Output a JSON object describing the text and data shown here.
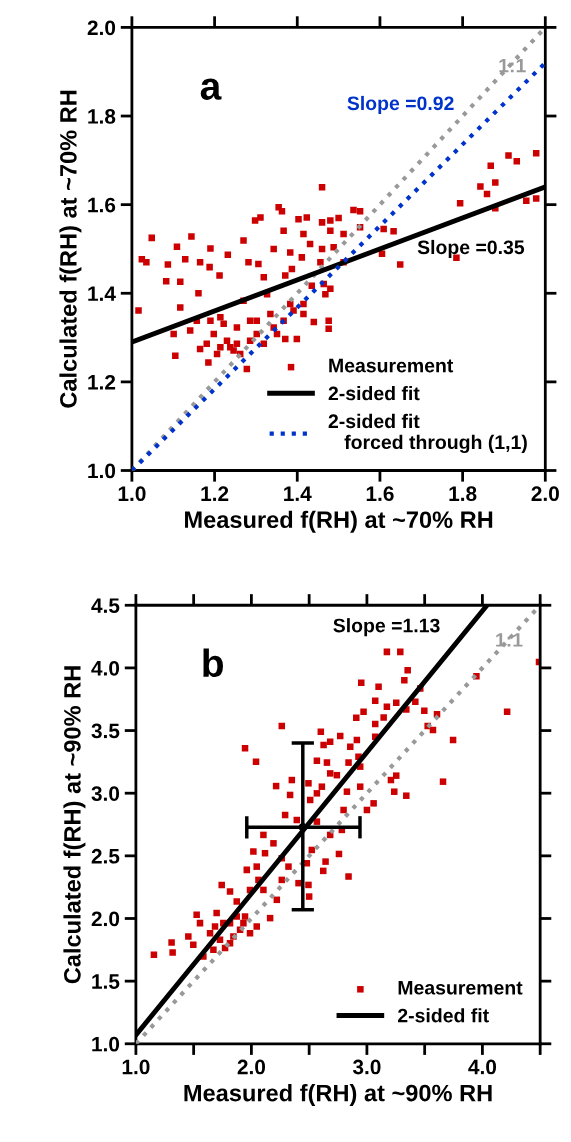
{
  "chart_data": [
    {
      "type": "scatter",
      "xlabel": "Measured f(RH) at ~70% RH",
      "ylabel": "Calculated f(RH) at ~70% RH",
      "xlim": [
        1.0,
        2.0
      ],
      "ylim": [
        1.0,
        2.0
      ],
      "xticks": [
        {
          "value": 1.0,
          "label": "1.0"
        },
        1.2,
        1.4,
        1.6,
        1.8,
        {
          "value": 2.0,
          "label": "2.0"
        }
      ],
      "yticks": [
        {
          "value": 1.0,
          "label": "1.0"
        },
        1.2,
        1.4,
        1.6,
        1.8,
        {
          "value": 2.0,
          "label": "2.0"
        }
      ],
      "grid": false,
      "legend": "bottom right",
      "annotations": [
        "a",
        {
          "text": "1:1",
          "x": 1.92,
          "y": 1.91
        },
        "Slope =0.92",
        "Slope =0.35"
      ],
      "series": [
        {
          "name": "Measurement",
          "marker": "square",
          "color": "#cc0000",
          "x": [
            1.016,
            1.024,
            1.048,
            1.035,
            1.083,
            1.087,
            1.109,
            1.144,
            1.129,
            1.117,
            1.161,
            1.19,
            1.188,
            1.212,
            1.232,
            1.165,
            1.101,
            1.105,
            1.117,
            1.141,
            1.165,
            1.185,
            1.198,
            1.214,
            1.23,
            1.246,
            1.262,
            1.278,
            1.254,
            1.27,
            1.286,
            1.302,
            1.319,
            1.335,
            1.327,
            1.319,
            1.351,
            1.367,
            1.383,
            1.399,
            1.415,
            1.27,
            1.298,
            1.311,
            1.355,
            1.363,
            1.367,
            1.403,
            1.423,
            1.415,
            1.46,
            1.46,
            1.48,
            1.5,
            1.536,
            1.552,
            1.552,
            1.512,
            1.48,
            1.431,
            1.383,
            1.343,
            1.282,
            1.306,
            1.371,
            1.387,
            1.411,
            1.456,
            1.46,
            1.488,
            1.435,
            1.464,
            1.48,
            1.468,
            1.415,
            1.44,
            1.476,
            1.476,
            1.371,
            1.512,
            1.609,
            1.633,
            1.605,
            1.649,
            1.794,
            1.785,
            1.843,
            1.868,
            1.879,
            1.859,
            1.879,
            1.911,
            1.931,
            1.978,
            1.954,
            1.978,
            1.181,
            1.206,
            1.238,
            1.222,
            1.19,
            1.254,
            1.157,
            1.286,
            1.302,
            1.343,
            1.391,
            1.214
          ],
          "values": [
            1.361,
            1.477,
            1.525,
            1.47,
            1.427,
            1.465,
            1.505,
            1.528,
            1.477,
            1.426,
            1.4,
            1.501,
            1.459,
            1.44,
            1.487,
            1.47,
            1.308,
            1.259,
            1.368,
            1.316,
            1.274,
            1.244,
            1.308,
            1.346,
            1.293,
            1.271,
            1.263,
            1.229,
            1.323,
            1.383,
            1.338,
            1.308,
            1.286,
            1.353,
            1.398,
            1.436,
            1.308,
            1.338,
            1.376,
            1.297,
            1.353,
            1.519,
            1.564,
            1.571,
            1.594,
            1.585,
            1.541,
            1.567,
            1.571,
            1.534,
            1.639,
            1.56,
            1.564,
            1.57,
            1.588,
            1.585,
            1.549,
            1.534,
            1.541,
            1.511,
            1.492,
            1.5,
            1.47,
            1.466,
            1.44,
            1.455,
            1.481,
            1.47,
            1.5,
            1.504,
            1.417,
            1.421,
            1.41,
            1.398,
            1.376,
            1.335,
            1.338,
            1.32,
            1.297,
            1.47,
            1.545,
            1.54,
            1.489,
            1.465,
            1.603,
            1.48,
            1.641,
            1.688,
            1.65,
            1.624,
            1.592,
            1.711,
            1.698,
            1.716,
            1.609,
            1.614,
            1.286,
            1.263,
            1.278,
            1.331,
            1.338,
            1.286,
            1.338,
            1.293,
            1.338,
            1.323,
            1.361,
            1.278
          ]
        },
        {
          "name": null,
          "type": "line",
          "line_style": "dotted",
          "color": "#999999",
          "x": [
            1.0,
            2.0
          ],
          "values": [
            1.0,
            2.0
          ]
        },
        {
          "name": "2-sided fit",
          "type": "line",
          "line_style": "solid",
          "color": "#000000",
          "x": [
            1.0,
            2.0
          ],
          "values": [
            1.29,
            1.64
          ]
        },
        {
          "name": "2-sided fit\n   forced through (1,1)",
          "type": "line",
          "line_style": "dotted",
          "color": "#0033cc",
          "x": [
            1.0,
            2.0
          ],
          "values": [
            1.0,
            1.92
          ]
        }
      ]
    },
    {
      "type": "scatter",
      "xlabel": "Measured f(RH) at ~90% RH",
      "ylabel": "Calculated f(RH) at ~90% RH",
      "xlim": [
        1.0,
        4.5
      ],
      "ylim": [
        1.0,
        4.5
      ],
      "xticks": [
        {
          "value": 1.0,
          "label": "1.0"
        },
        {
          "value": 1.5,
          "label": null
        },
        {
          "value": 2.0,
          "label": "2.0"
        },
        {
          "value": 2.5,
          "label": null
        },
        {
          "value": 3.0,
          "label": "3.0"
        },
        {
          "value": 3.5,
          "label": null
        },
        {
          "value": 4.0,
          "label": "4.0"
        },
        {
          "value": 4.5,
          "label": null
        }
      ],
      "yticks": [
        {
          "value": 1.0,
          "label": "1.0"
        },
        1.5,
        {
          "value": 2.0,
          "label": "2.0"
        },
        2.5,
        {
          "value": 3.0,
          "label": "3.0"
        },
        3.5,
        {
          "value": 4.0,
          "label": "4.0"
        },
        4.5
      ],
      "grid": false,
      "legend": "bottom right",
      "annotations": [
        "b",
        "Slope =1.13",
        {
          "text": "1:1",
          "x": 4.23,
          "y": 4.21
        }
      ],
      "series": [
        {
          "name": "Measurement",
          "marker": "square",
          "color": "#cc0000",
          "x": [
            1.156,
            1.318,
            1.309,
            1.454,
            1.526,
            1.555,
            1.497,
            1.584,
            1.642,
            1.699,
            1.728,
            1.772,
            1.815,
            1.844,
            1.902,
            1.945,
            1.988,
            2.046,
            1.743,
            1.815,
            1.873,
            1.96,
            1.988,
            2.061,
            2.104,
            2.162,
            2.22,
            2.046,
            2.118,
            2.017,
            2.104,
            2.191,
            2.263,
            2.321,
            2.263,
            1.945,
            2.04,
            2.263,
            2.214,
            2.35,
            2.335,
            2.292,
            2.393,
            2.494,
            2.509,
            2.567,
            2.61,
            2.682,
            2.74,
            2.567,
            2.654,
            2.625,
            2.682,
            2.769,
            2.601,
            2.856,
            2.913,
            2.841,
            2.942,
            2.927,
            2.827,
            2.942,
            3.0,
            3.058,
            2.798,
            2.783,
            2.682,
            2.567,
            2.523,
            2.48,
            2.408,
            2.494,
            2.5,
            2.642,
            2.622,
            2.758,
            2.841,
            2.908,
            2.971,
            3.072,
            3.072,
            3.101,
            2.951,
            3.173,
            3.289,
            3.353,
            3.324,
            3.254,
            3.173,
            3.145,
            3.072,
            3.208,
            3.254,
            3.237,
            3.341,
            3.462,
            3.497,
            3.526,
            3.572,
            3.607,
            3.746,
            3.659,
            3.948,
            4.214,
            4.49,
            3.419,
            3.341,
            1.757,
            1.873,
            1.671,
            1.815,
            1.931,
            1.685
          ],
          "values": [
            1.71,
            1.729,
            1.809,
            1.857,
            2.029,
            1.963,
            1.79,
            1.697,
            1.883,
            2.043,
            1.83,
            1.764,
            1.963,
            1.857,
            1.91,
            2.016,
            1.883,
            1.936,
            2.268,
            2.215,
            2.135,
            2.388,
            2.228,
            2.308,
            2.228,
            2.003,
            2.149,
            2.414,
            2.521,
            2.534,
            2.667,
            2.6,
            2.481,
            2.414,
            2.308,
            3.358,
            3.251,
            3.536,
            3.057,
            3.105,
            2.986,
            2.826,
            2.786,
            3.079,
            2.946,
            2.999,
            3.052,
            3.158,
            3.144,
            3.259,
            3.244,
            3.384,
            3.411,
            3.456,
            3.49,
            3.371,
            3.424,
            3.244,
            3.212,
            3.291,
            3.012,
            3.052,
            2.866,
            2.919,
            2.866,
            2.707,
            2.667,
            2.773,
            2.547,
            2.441,
            2.282,
            2.268,
            2.175,
            2.454,
            2.38,
            2.515,
            2.335,
            3.602,
            3.65,
            3.552,
            3.737,
            3.849,
            3.881,
            4.128,
            4.128,
            3.982,
            3.902,
            3.722,
            3.69,
            3.605,
            3.451,
            3.105,
            3.14,
            3.012,
            2.98,
            3.836,
            3.658,
            3.536,
            3.504,
            3.631,
            3.424,
            3.092,
            3.934,
            3.65,
            4.048,
            3.73,
            3.668,
            1.963,
            2.016,
            1.75,
            1.803,
            1.963,
            1.936
          ]
        },
        {
          "name": null,
          "type": "line",
          "line_style": "dotted",
          "color": "#999999",
          "x": [
            1.0,
            4.5
          ],
          "values": [
            1.0,
            4.5
          ]
        },
        {
          "name": "2-sided fit",
          "type": "line",
          "line_style": "solid",
          "color": "#000000",
          "x": [
            1.0,
            4.04
          ],
          "values": [
            1.07,
            4.5
          ]
        },
        {
          "name": null,
          "marker": "circle",
          "color": "#000000",
          "x": [
            2.445
          ],
          "values": [
            2.728
          ],
          "errors": [
            [
              2.07,
              3.4
            ]
          ],
          "xerrors": [
            [
              1.96,
              2.94
            ]
          ]
        }
      ]
    }
  ]
}
